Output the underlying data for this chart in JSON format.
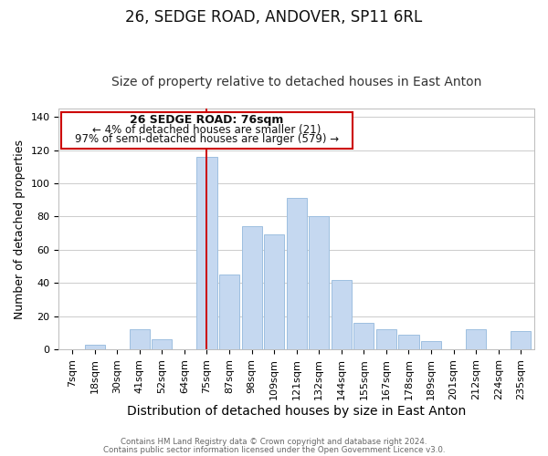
{
  "title": "26, SEDGE ROAD, ANDOVER, SP11 6RL",
  "subtitle": "Size of property relative to detached houses in East Anton",
  "xlabel": "Distribution of detached houses by size in East Anton",
  "ylabel": "Number of detached properties",
  "categories": [
    "7sqm",
    "18sqm",
    "30sqm",
    "41sqm",
    "52sqm",
    "64sqm",
    "75sqm",
    "87sqm",
    "98sqm",
    "109sqm",
    "121sqm",
    "132sqm",
    "144sqm",
    "155sqm",
    "167sqm",
    "178sqm",
    "189sqm",
    "201sqm",
    "212sqm",
    "224sqm",
    "235sqm"
  ],
  "values": [
    0,
    3,
    0,
    12,
    6,
    0,
    116,
    45,
    74,
    69,
    91,
    80,
    42,
    16,
    12,
    9,
    5,
    0,
    12,
    0,
    11
  ],
  "bar_color": "#c5d8f0",
  "bar_edge_color": "#9dbfe0",
  "vline_x_index": 6,
  "vline_color": "#cc0000",
  "annotation_title": "26 SEDGE ROAD: 76sqm",
  "annotation_line1": "← 4% of detached houses are smaller (21)",
  "annotation_line2": "97% of semi-detached houses are larger (579) →",
  "annotation_box_edge": "#cc0000",
  "ylim": [
    0,
    145
  ],
  "footer1": "Contains HM Land Registry data © Crown copyright and database right 2024.",
  "footer2": "Contains public sector information licensed under the Open Government Licence v3.0.",
  "bg_color": "#ffffff",
  "grid_color": "#cccccc",
  "title_fontsize": 12,
  "subtitle_fontsize": 10,
  "xlabel_fontsize": 10,
  "ylabel_fontsize": 9,
  "tick_fontsize": 8,
  "ytick_fontsize": 8,
  "figsize": [
    6.0,
    5.0
  ],
  "dpi": 100
}
